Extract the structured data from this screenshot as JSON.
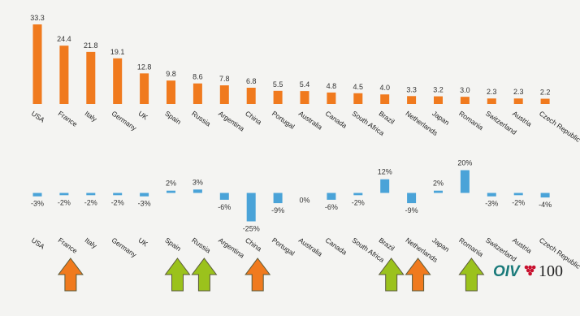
{
  "chart_data": [
    {
      "type": "bar",
      "categories": [
        "USA",
        "France",
        "Italy",
        "Germany",
        "UK",
        "Spain",
        "Russia",
        "Argentina",
        "China",
        "Portugal",
        "Australia",
        "Canada",
        "South Africa",
        "Brazil",
        "Netherlands",
        "Japan",
        "Romania",
        "Switzerland",
        "Austria",
        "Czech Republic"
      ],
      "values": [
        33.3,
        24.4,
        21.8,
        19.1,
        12.8,
        9.8,
        8.6,
        7.8,
        6.8,
        5.5,
        5.4,
        4.8,
        4.5,
        4.0,
        3.3,
        3.2,
        3.0,
        2.3,
        2.3,
        2.2
      ],
      "value_labels": [
        "33.3",
        "24.4",
        "21.8",
        "19.1",
        "12.8",
        "9.8",
        "8.6",
        "7.8",
        "6.8",
        "5.5",
        "5.4",
        "4.8",
        "4.5",
        "4.0",
        "3.3",
        "3.2",
        "3.0",
        "2.3",
        "2.3",
        "2.2"
      ],
      "title": "",
      "xlabel": "",
      "ylabel": "",
      "ylim": [
        0,
        34
      ],
      "grid": false,
      "color": "#f07a1e"
    },
    {
      "type": "bar",
      "categories": [
        "USA",
        "France",
        "Italy",
        "Germany",
        "UK",
        "Spain",
        "Russia",
        "Argentina",
        "China",
        "Portugal",
        "Australia",
        "Canada",
        "South Africa",
        "Brazil",
        "Netherlands",
        "Japan",
        "Romania",
        "Switzerland",
        "Austria",
        "Czech Republic"
      ],
      "values": [
        -3,
        -2,
        -2,
        -2,
        -3,
        2,
        3,
        -6,
        -25,
        -9,
        0,
        -6,
        -2,
        12,
        -9,
        2,
        20,
        -3,
        -2,
        -4
      ],
      "value_labels": [
        "-3%",
        "-2%",
        "-2%",
        "-2%",
        "-3%",
        "2%",
        "3%",
        "-6%",
        "-25%",
        "-9%",
        "0%",
        "-6%",
        "-2%",
        "12%",
        "-9%",
        "2%",
        "20%",
        "-3%",
        "-2%",
        "-4%"
      ],
      "title": "",
      "xlabel": "",
      "ylabel": "",
      "ylim": [
        -25,
        20
      ],
      "grid": false,
      "color": "#4aa3d8"
    }
  ],
  "arrows": [
    {
      "category": "France",
      "direction": "up",
      "color": "#f07a1e"
    },
    {
      "category": "Spain",
      "direction": "up",
      "color": "#9bc21c"
    },
    {
      "category": "Russia",
      "direction": "up",
      "color": "#9bc21c"
    },
    {
      "category": "China",
      "direction": "up",
      "color": "#f07a1e"
    },
    {
      "category": "Brazil",
      "direction": "up",
      "color": "#9bc21c"
    },
    {
      "category": "Netherlands",
      "direction": "up",
      "color": "#f07a1e"
    },
    {
      "category": "Romania",
      "direction": "up",
      "color": "#9bc21c"
    }
  ],
  "logo": {
    "text": "OIV",
    "number": "100",
    "text_color": "#1a7a7a",
    "mark_color": "#c8102e",
    "icon": "grape-cluster-icon"
  }
}
